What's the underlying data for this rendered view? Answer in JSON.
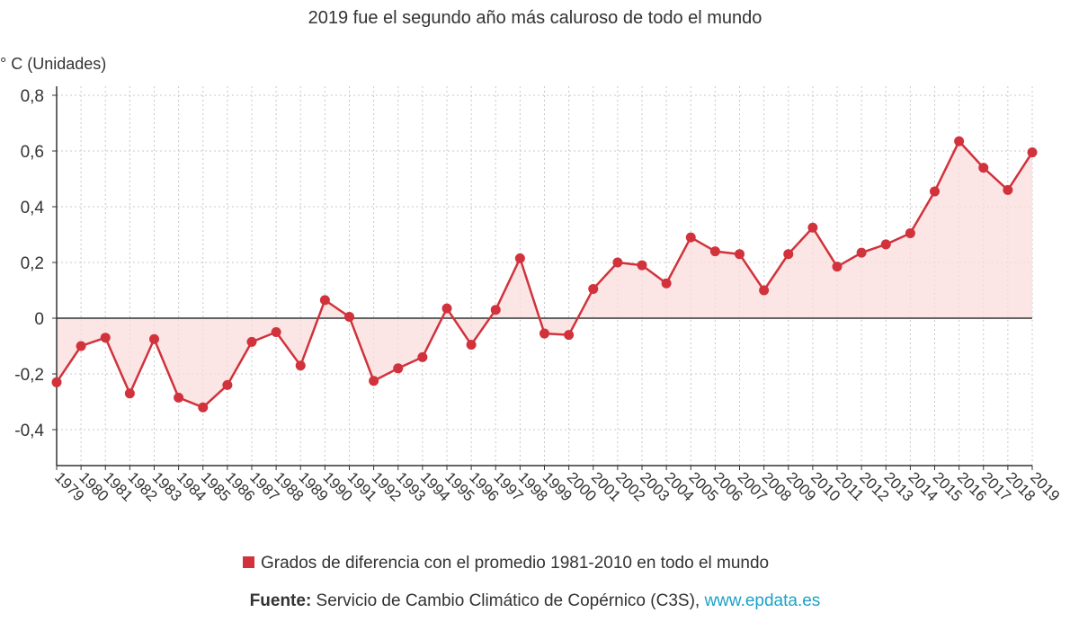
{
  "chart_data": {
    "type": "line",
    "title": "2019 fue el segundo año más caluroso de todo el mundo",
    "ylabel": "° C (Unidades)",
    "xlabel": "",
    "ylim": [
      -0.5,
      0.8
    ],
    "yticks": [
      0.8,
      0.6,
      0.4,
      0.2,
      0,
      -0.2,
      -0.4
    ],
    "ytick_labels": [
      "0,8",
      "0,6",
      "0,4",
      "0,2",
      "0",
      "-0,2",
      "-0,4"
    ],
    "grid": true,
    "area_fill": true,
    "legend_position": "bottom",
    "categories": [
      "1979",
      "1980",
      "1981",
      "1982",
      "1983",
      "1984",
      "1985",
      "1986",
      "1987",
      "1988",
      "1989",
      "1990",
      "1991",
      "1992",
      "1993",
      "1994",
      "1995",
      "1996",
      "1997",
      "1998",
      "1999",
      "2000",
      "2001",
      "2002",
      "2003",
      "2004",
      "2005",
      "2006",
      "2007",
      "2008",
      "2009",
      "2010",
      "2011",
      "2012",
      "2013",
      "2014",
      "2015",
      "2016",
      "2017",
      "2018",
      "2019"
    ],
    "series": [
      {
        "name": "Grados de diferencia con el promedio 1981-2010 en todo el mundo",
        "color": "#d1323c",
        "values": [
          -0.23,
          -0.1,
          -0.07,
          -0.27,
          -0.075,
          -0.285,
          -0.32,
          -0.24,
          -0.085,
          -0.05,
          -0.17,
          0.065,
          0.005,
          -0.225,
          -0.18,
          -0.14,
          0.035,
          -0.095,
          0.03,
          0.215,
          -0.055,
          -0.06,
          0.105,
          0.2,
          0.19,
          0.125,
          0.29,
          0.24,
          0.23,
          0.1,
          0.23,
          0.325,
          0.185,
          0.235,
          0.265,
          0.305,
          0.455,
          0.635,
          0.54,
          0.46,
          0.595
        ]
      }
    ]
  },
  "source": {
    "label": "Fuente:",
    "text": " Servicio de Cambio Climático de Copérnico (C3S), ",
    "link": "www.epdata.es"
  },
  "colors": {
    "series": "#d1323c",
    "fill": "#f9dcdc",
    "link": "#1aa3c8"
  }
}
